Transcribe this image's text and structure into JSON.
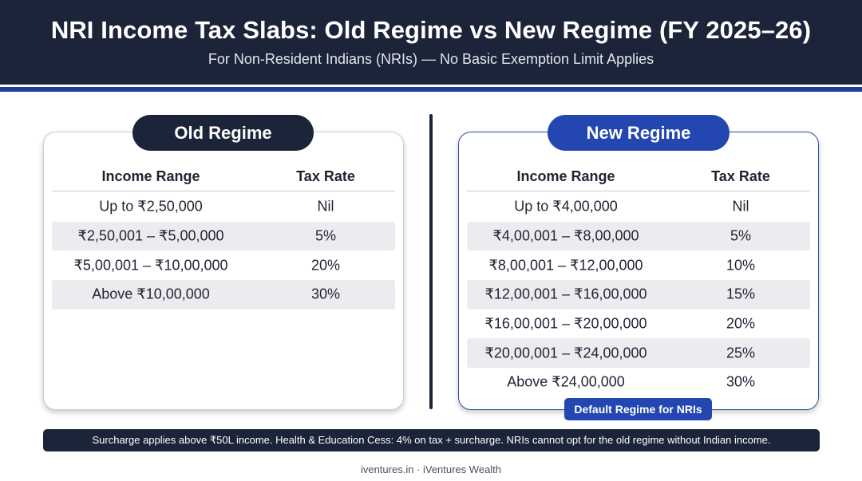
{
  "header": {
    "title": "NRI Income Tax Slabs: Old Regime vs New Regime (FY 2025–26)",
    "subtitle": "For Non-Resident Indians (NRIs) — No Basic Exemption Limit Applies"
  },
  "old_regime": {
    "label": "Old Regime",
    "col_income": "Income Range",
    "col_rate": "Tax Rate",
    "rows": [
      {
        "range": "Up to ₹2,50,000",
        "rate": "Nil"
      },
      {
        "range": "₹2,50,001 – ₹5,00,000",
        "rate": "5%"
      },
      {
        "range": "₹5,00,001 – ₹10,00,000",
        "rate": "20%"
      },
      {
        "range": "Above ₹10,00,000",
        "rate": "30%"
      }
    ]
  },
  "new_regime": {
    "label": "New Regime",
    "col_income": "Income Range",
    "col_rate": "Tax Rate",
    "rows": [
      {
        "range": "Up to ₹4,00,000",
        "rate": "Nil"
      },
      {
        "range": "₹4,00,001 – ₹8,00,000",
        "rate": "5%"
      },
      {
        "range": "₹8,00,001 – ₹12,00,000",
        "rate": "10%"
      },
      {
        "range": "₹12,00,001 – ₹16,00,000",
        "rate": "15%"
      },
      {
        "range": "₹16,00,001 – ₹20,00,000",
        "rate": "20%"
      },
      {
        "range": "₹20,00,001 – ₹24,00,000",
        "rate": "25%"
      },
      {
        "range": "Above ₹24,00,000",
        "rate": "30%"
      }
    ],
    "badge": "Default Regime for NRIs"
  },
  "note": "Surcharge applies above ₹50L income. Health & Education Cess: 4% on tax + surcharge. NRIs cannot opt for the old regime without Indian income.",
  "footer": "iventures.in · iVentures Wealth",
  "colors": {
    "navy": "#1b2438",
    "blue": "#2346b0",
    "row_alt": "#ececf0"
  }
}
